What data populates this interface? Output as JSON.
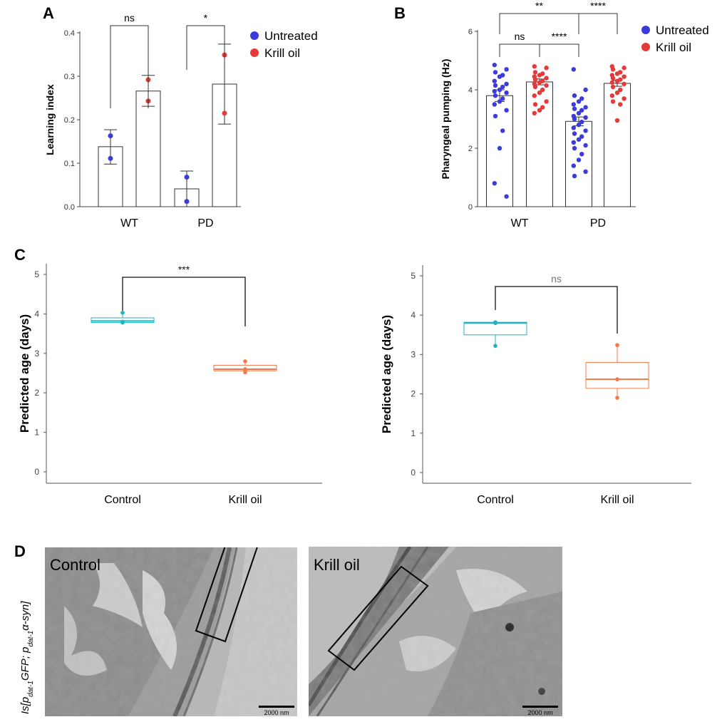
{
  "chart_data": [
    {
      "panel": "A",
      "type": "bar",
      "ylabel": "Learning index",
      "ylim": [
        0,
        0.4
      ],
      "yticks": [
        "0.0",
        "0.1",
        "0.2",
        "0.3",
        "0.4"
      ],
      "groups": [
        "WT",
        "PD"
      ],
      "legend": {
        "position": "top-right",
        "entries": [
          "Untreated",
          "Krill oil"
        ],
        "colors": [
          "#3b3bd9",
          "#e63a3a"
        ]
      },
      "bars": [
        {
          "group": "WT",
          "series": "Untreated",
          "mean": 0.138,
          "err_low": 0.098,
          "err_high": 0.177,
          "points": [
            0.163,
            0.111
          ]
        },
        {
          "group": "WT",
          "series": "Krill oil",
          "mean": 0.266,
          "err_low": 0.231,
          "err_high": 0.302,
          "points": [
            0.292,
            0.243
          ]
        },
        {
          "group": "PD",
          "series": "Untreated",
          "mean": 0.041,
          "err_low": 0.0,
          "err_high": 0.082,
          "points": [
            0.068,
            0.012
          ]
        },
        {
          "group": "PD",
          "series": "Krill oil",
          "mean": 0.282,
          "err_low": 0.19,
          "err_high": 0.374,
          "points": [
            0.349,
            0.215
          ]
        }
      ],
      "significance": [
        {
          "from": 0,
          "to": 1,
          "label": "ns"
        },
        {
          "from": 2,
          "to": 3,
          "label": "*"
        }
      ]
    },
    {
      "panel": "B",
      "type": "bar",
      "ylabel": "Pharyngeal pumping (Hz)",
      "ylim": [
        0,
        6
      ],
      "yticks": [
        "0",
        "2",
        "4",
        "6"
      ],
      "groups": [
        "WT",
        "PD"
      ],
      "legend": {
        "position": "top-right",
        "entries": [
          "Untreated",
          "Krill oil"
        ],
        "colors": [
          "#3b3bd9",
          "#e63a3a"
        ]
      },
      "bars": [
        {
          "group": "WT",
          "series": "Untreated",
          "mean": 3.8,
          "sem": 0.2,
          "points": [
            4.85,
            4.7,
            4.6,
            4.5,
            4.45,
            4.3,
            4.2,
            4.15,
            4.1,
            4.0,
            3.95,
            3.9,
            3.8,
            3.7,
            3.6,
            3.5,
            3.3,
            3.1,
            2.6,
            2.0,
            0.8,
            0.35
          ]
        },
        {
          "group": "WT",
          "series": "Krill oil",
          "mean": 4.27,
          "sem": 0.1,
          "points": [
            4.8,
            4.75,
            4.6,
            4.55,
            4.5,
            4.45,
            4.4,
            4.35,
            4.3,
            4.25,
            4.2,
            4.15,
            4.1,
            4.0,
            3.9,
            3.8,
            3.6,
            3.5,
            3.4,
            3.3,
            3.2
          ]
        },
        {
          "group": "PD",
          "series": "Untreated",
          "mean": 2.92,
          "sem": 0.15,
          "points": [
            4.7,
            4.0,
            3.8,
            3.7,
            3.6,
            3.5,
            3.4,
            3.35,
            3.3,
            3.2,
            3.1,
            3.05,
            3.0,
            2.9,
            2.8,
            2.7,
            2.6,
            2.5,
            2.4,
            2.3,
            2.2,
            2.1,
            2.0,
            1.8,
            1.6,
            1.4,
            1.2,
            1.05
          ]
        },
        {
          "group": "PD",
          "series": "Krill oil",
          "mean": 4.22,
          "sem": 0.1,
          "points": [
            4.8,
            4.75,
            4.7,
            4.6,
            4.55,
            4.5,
            4.45,
            4.4,
            4.35,
            4.3,
            4.25,
            4.2,
            4.1,
            4.0,
            3.9,
            3.8,
            3.7,
            3.6,
            3.5,
            2.95
          ]
        }
      ],
      "significance": [
        {
          "from": 0,
          "to": 1,
          "label": "ns"
        },
        {
          "from": 1,
          "to": 2,
          "label": "****"
        },
        {
          "from": 0,
          "to": 2,
          "label": "**"
        },
        {
          "from": 2,
          "to": 3,
          "label": "****"
        }
      ]
    },
    {
      "panel": "C",
      "type": "box",
      "ylabel": "Predicted age (days)",
      "ylim": [
        0,
        5
      ],
      "yticks": [
        "0",
        "1",
        "2",
        "3",
        "4",
        "5"
      ],
      "categories": [
        "Control",
        "Krill oil"
      ],
      "colors": [
        "#1fb3c0",
        "#f07a4a"
      ],
      "boxes": [
        {
          "category": "Control",
          "min": 3.78,
          "q1": 3.78,
          "median": 3.82,
          "q3": 3.9,
          "max": 4.03,
          "points": [
            4.03,
            3.8,
            3.78
          ]
        },
        {
          "category": "Krill oil",
          "min": 2.52,
          "q1": 2.56,
          "median": 2.6,
          "q3": 2.7,
          "max": 2.8,
          "points": [
            2.8,
            2.6,
            2.52
          ]
        }
      ],
      "significance": [
        {
          "from": 0,
          "to": 1,
          "label": "***"
        }
      ]
    },
    {
      "panel": "C-right",
      "type": "box",
      "ylabel": "Predicted age (days)",
      "ylim": [
        0,
        5
      ],
      "yticks": [
        "0",
        "1",
        "2",
        "3",
        "4",
        "5"
      ],
      "categories": [
        "Control",
        "Krill oil"
      ],
      "colors": [
        "#1fb3c0",
        "#f07a4a"
      ],
      "boxes": [
        {
          "category": "Control",
          "min": 3.22,
          "q1": 3.5,
          "median": 3.8,
          "q3": 3.82,
          "max": 3.82,
          "points": [
            3.82,
            3.8,
            3.22
          ]
        },
        {
          "category": "Krill oil",
          "min": 1.9,
          "q1": 2.14,
          "median": 2.37,
          "q3": 2.8,
          "max": 3.24,
          "points": [
            3.24,
            2.37,
            1.9
          ]
        }
      ],
      "significance": [
        {
          "from": 0,
          "to": 1,
          "label": "ns"
        }
      ]
    }
  ],
  "panel_labels": {
    "a": "A",
    "b": "B",
    "c": "C",
    "d": "D"
  },
  "panel_d": {
    "genotype_parts": [
      "Is[p",
      "dat-1",
      "GFP; p",
      "dat-1",
      "α-syn]"
    ],
    "images": [
      {
        "label": "Control",
        "scale_bar": "2000 nm"
      },
      {
        "label": "Krill oil",
        "scale_bar": "2000 nm"
      }
    ]
  }
}
